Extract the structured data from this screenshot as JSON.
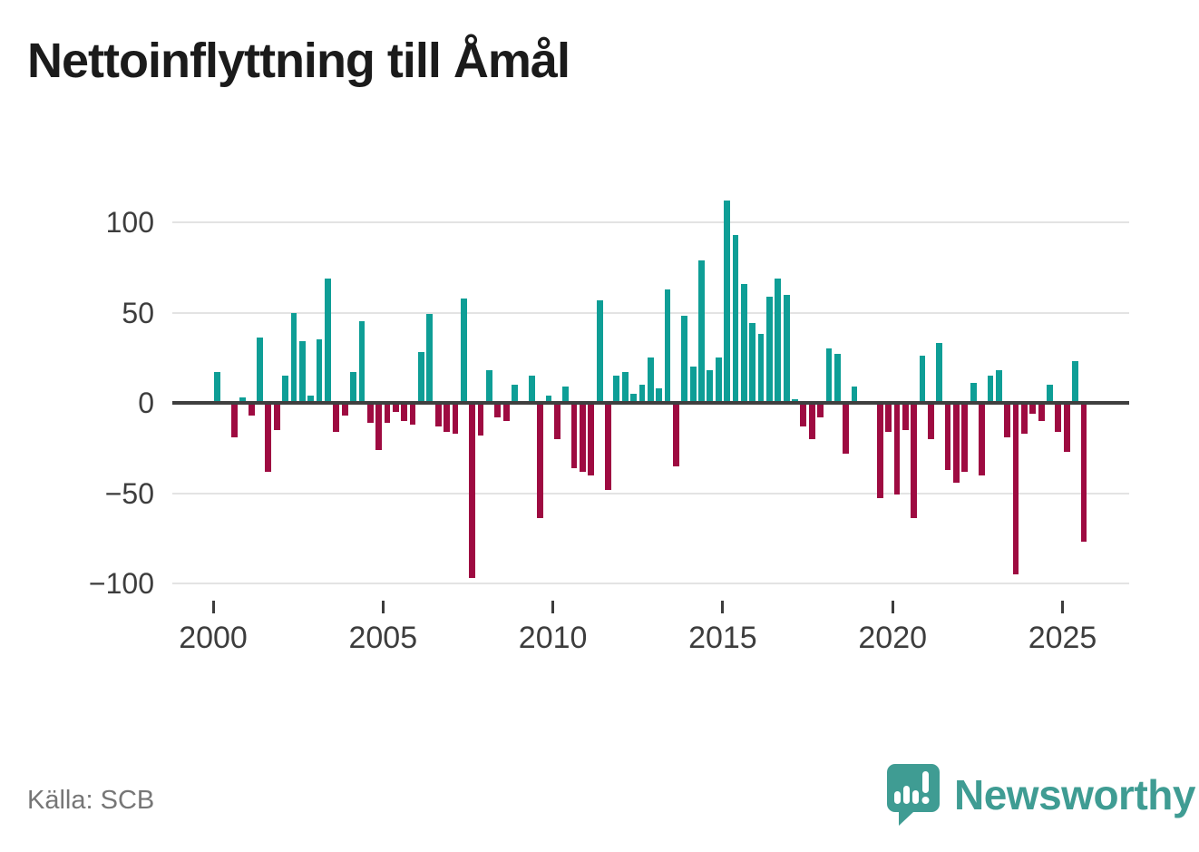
{
  "title": "Nettoinflyttning till Åmål",
  "source": "Källa: SCB",
  "brand": {
    "name": "Newsworthy",
    "icon": "bar-chart-speech-bubble-icon"
  },
  "colors": {
    "positive_bar": "#0e9e96",
    "negative_bar": "#9e0b41",
    "grid": "#e3e3e3",
    "zero_axis": "#3f3f3f",
    "axis_text": "#3d3d3d",
    "title_text": "#1b1b1b",
    "source_text": "#767676",
    "brand_teal": "#3f9c93",
    "background": "#ffffff"
  },
  "chart_data": {
    "type": "bar",
    "title": "Nettoinflyttning till Åmål",
    "xlabel": "",
    "ylabel": "",
    "grid": true,
    "legend": false,
    "frequency": "quarterly",
    "x_ticks": [
      2000,
      2005,
      2010,
      2015,
      2020,
      2025
    ],
    "y_ticks": [
      {
        "label": "100",
        "value": 100
      },
      {
        "label": "50",
        "value": 50
      },
      {
        "label": "0",
        "value": 0
      },
      {
        "label": "−50",
        "value": -50
      },
      {
        "label": "−100",
        "value": -100
      }
    ],
    "ylim": [
      -100,
      112
    ],
    "periods": [
      "2000Q1",
      "2000Q2",
      "2000Q3",
      "2000Q4",
      "2001Q1",
      "2001Q2",
      "2001Q3",
      "2001Q4",
      "2002Q1",
      "2002Q2",
      "2002Q3",
      "2002Q4",
      "2003Q1",
      "2003Q2",
      "2003Q3",
      "2003Q4",
      "2004Q1",
      "2004Q2",
      "2004Q3",
      "2004Q4",
      "2005Q1",
      "2005Q2",
      "2005Q3",
      "2005Q4",
      "2006Q1",
      "2006Q2",
      "2006Q3",
      "2006Q4",
      "2007Q1",
      "2007Q2",
      "2007Q3",
      "2007Q4",
      "2008Q1",
      "2008Q2",
      "2008Q3",
      "2008Q4",
      "2009Q1",
      "2009Q2",
      "2009Q3",
      "2009Q4",
      "2010Q1",
      "2010Q2",
      "2010Q3",
      "2010Q4",
      "2011Q1",
      "2011Q2",
      "2011Q3",
      "2011Q4",
      "2012Q1",
      "2012Q2",
      "2012Q3",
      "2012Q4",
      "2013Q1",
      "2013Q2",
      "2013Q3",
      "2013Q4",
      "2014Q1",
      "2014Q2",
      "2014Q3",
      "2014Q4",
      "2015Q1",
      "2015Q2",
      "2015Q3",
      "2015Q4",
      "2016Q1",
      "2016Q2",
      "2016Q3",
      "2016Q4",
      "2017Q1",
      "2017Q2",
      "2017Q3",
      "2017Q4",
      "2018Q1",
      "2018Q2",
      "2018Q3",
      "2018Q4",
      "2019Q1",
      "2019Q2",
      "2019Q3",
      "2019Q4",
      "2020Q1",
      "2020Q2",
      "2020Q3",
      "2020Q4",
      "2021Q1",
      "2021Q2",
      "2021Q3",
      "2021Q4",
      "2022Q1",
      "2022Q2",
      "2022Q3",
      "2022Q4",
      "2023Q1",
      "2023Q2",
      "2023Q3",
      "2023Q4",
      "2024Q1",
      "2024Q2",
      "2024Q3",
      "2024Q4",
      "2025Q1",
      "2025Q2",
      "2025Q3"
    ],
    "values": [
      17,
      0,
      -19,
      3,
      -7,
      36,
      -38,
      -15,
      15,
      50,
      34,
      4,
      35,
      69,
      -16,
      -7,
      17,
      45,
      -11,
      -26,
      -11,
      -5,
      -10,
      -12,
      28,
      49,
      -13,
      -16,
      -17,
      58,
      -97,
      -18,
      18,
      -8,
      -10,
      10,
      0,
      15,
      -64,
      4,
      -20,
      9,
      -36,
      -38,
      -40,
      57,
      -48,
      15,
      17,
      5,
      10,
      25,
      8,
      63,
      -35,
      48,
      20,
      79,
      18,
      25,
      112,
      93,
      66,
      44,
      38,
      59,
      69,
      60,
      2,
      -13,
      -20,
      -8,
      30,
      27,
      -28,
      9,
      0,
      0,
      -53,
      -16,
      -51,
      -15,
      -64,
      26,
      -20,
      33,
      -37,
      -44,
      -38,
      11,
      -40,
      15,
      18,
      -19,
      -95,
      -17,
      -6,
      -10,
      10,
      -16,
      -27,
      23,
      -77
    ]
  }
}
